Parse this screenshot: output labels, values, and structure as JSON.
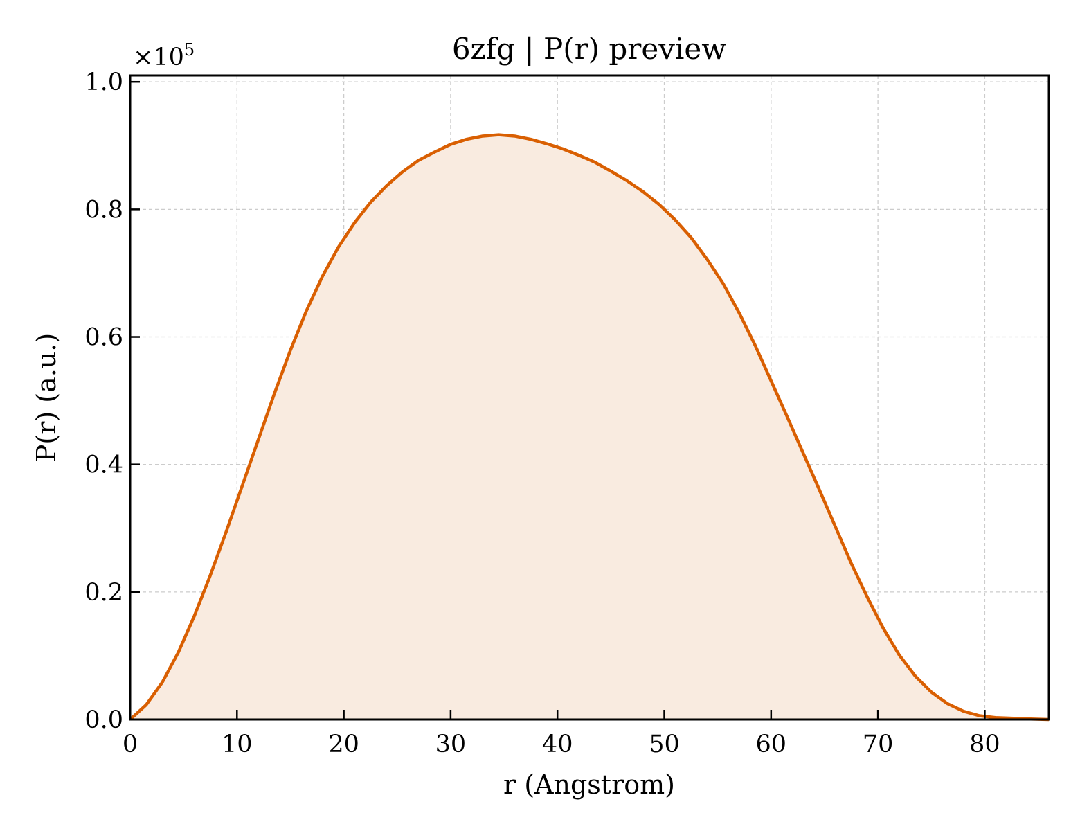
{
  "chart_data": {
    "type": "area",
    "title": "6zfg | P(r) preview",
    "xlabel": "r (Angstrom)",
    "ylabel": "P(r) (a.u.)",
    "y_multiplier_label": "×10",
    "y_multiplier_exponent": "5",
    "xlim": [
      0,
      86
    ],
    "ylim": [
      0,
      1.01
    ],
    "y_scale_factor": 100000,
    "x_ticks": [
      0,
      10,
      20,
      30,
      40,
      50,
      60,
      70,
      80
    ],
    "x_tick_labels": [
      "0",
      "10",
      "20",
      "30",
      "40",
      "50",
      "60",
      "70",
      "80"
    ],
    "y_ticks": [
      0.0,
      0.2,
      0.4,
      0.6,
      0.8,
      1.0
    ],
    "y_tick_labels": [
      "0.0",
      "0.2",
      "0.4",
      "0.6",
      "0.8",
      "1.0"
    ],
    "grid": true,
    "colors": {
      "line": "#d95f02",
      "fill": "#f9ebe0"
    },
    "series": [
      {
        "x": [
          0,
          1.5,
          3,
          4.5,
          6,
          7.5,
          9,
          10.5,
          12,
          13.5,
          15,
          16.5,
          18,
          19.5,
          21,
          22.5,
          24,
          25.5,
          27,
          28.5,
          30,
          31.5,
          33,
          34.5,
          36,
          37.5,
          39,
          40.5,
          42,
          43.5,
          45,
          46.5,
          48,
          49.5,
          51,
          52.5,
          54,
          55.5,
          57,
          58.5,
          60,
          61.5,
          63,
          64.5,
          66,
          67.5,
          69,
          70.5,
          72,
          73.5,
          75,
          76.5,
          78,
          79.5,
          81,
          82.5,
          84,
          86
        ],
        "y": [
          0.0,
          0.023,
          0.058,
          0.105,
          0.162,
          0.226,
          0.295,
          0.367,
          0.439,
          0.511,
          0.579,
          0.641,
          0.695,
          0.741,
          0.779,
          0.811,
          0.837,
          0.859,
          0.877,
          0.89,
          0.902,
          0.91,
          0.915,
          0.917,
          0.915,
          0.91,
          0.903,
          0.895,
          0.885,
          0.874,
          0.86,
          0.845,
          0.828,
          0.808,
          0.784,
          0.756,
          0.722,
          0.684,
          0.638,
          0.587,
          0.531,
          0.475,
          0.418,
          0.361,
          0.303,
          0.245,
          0.192,
          0.143,
          0.101,
          0.068,
          0.043,
          0.025,
          0.013,
          0.006,
          0.003,
          0.002,
          0.001,
          0.0
        ]
      }
    ]
  }
}
